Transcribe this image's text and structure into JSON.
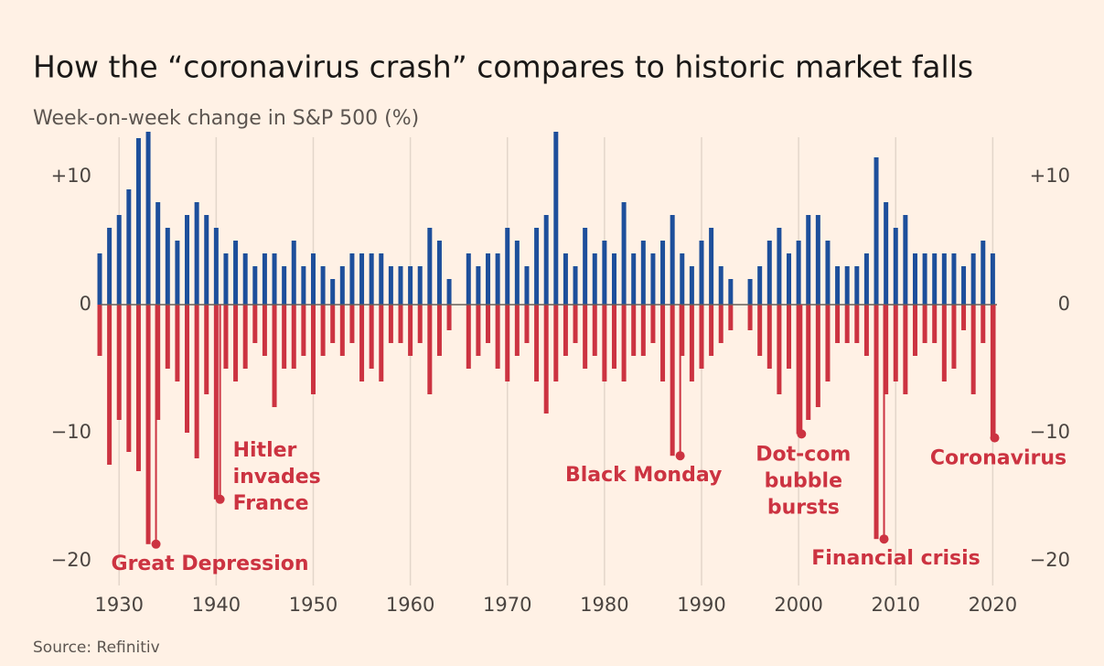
{
  "chart_data": {
    "type": "bar",
    "title": "How the “coronavirus crash” compares to historic market falls",
    "subtitle": "Week-on-week change in S&P 500 (%)",
    "source": "Source: Refinitiv",
    "x": [
      1928,
      1929,
      1930,
      1931,
      1932,
      1933,
      1934,
      1935,
      1936,
      1937,
      1938,
      1939,
      1940,
      1941,
      1942,
      1943,
      1944,
      1945,
      1946,
      1947,
      1948,
      1949,
      1950,
      1951,
      1952,
      1953,
      1954,
      1955,
      1956,
      1957,
      1958,
      1959,
      1960,
      1961,
      1962,
      1963,
      1964,
      1965,
      1966,
      1967,
      1968,
      1969,
      1970,
      1971,
      1972,
      1973,
      1974,
      1975,
      1976,
      1977,
      1978,
      1979,
      1980,
      1981,
      1982,
      1983,
      1984,
      1985,
      1986,
      1987,
      1988,
      1989,
      1990,
      1991,
      1992,
      1993,
      1994,
      1995,
      1996,
      1997,
      1998,
      1999,
      2000,
      2001,
      2002,
      2003,
      2004,
      2005,
      2006,
      2007,
      2008,
      2009,
      2010,
      2011,
      2012,
      2013,
      2014,
      2015,
      2016,
      2017,
      2018,
      2019,
      2020
    ],
    "series": [
      {
        "color": "#1d4f9b",
        "values": [
          4,
          6,
          7,
          9,
          13,
          13.5,
          8,
          6,
          5,
          7,
          8,
          7,
          6,
          4,
          5,
          4,
          3,
          4,
          4,
          3,
          5,
          3,
          4,
          3,
          2,
          3,
          4,
          4,
          4,
          4,
          3,
          3,
          3,
          3,
          6,
          5,
          2,
          null,
          4,
          3,
          4,
          4,
          6,
          5,
          3,
          6,
          7,
          13.5,
          4,
          3,
          6,
          4,
          5,
          4,
          8,
          4,
          5,
          4,
          5,
          7,
          4,
          3,
          5,
          6,
          3,
          2,
          null,
          2,
          3,
          5,
          6,
          4,
          5,
          7,
          7,
          5,
          3,
          3,
          3,
          4,
          11.5,
          8,
          6,
          7,
          4,
          4,
          4,
          4,
          4,
          3,
          4,
          5,
          4
        ]
      },
      {
        "color": "#cc3341",
        "values": [
          -4,
          -12.5,
          -9,
          -11.5,
          -13,
          -18.7,
          -9,
          -5,
          -6,
          -10,
          -12,
          -7,
          -15.2,
          -5,
          -6,
          -5,
          -3,
          -4,
          -8,
          -5,
          -5,
          -4,
          -7,
          -4,
          -3,
          -4,
          -3,
          -6,
          -5,
          -6,
          -3,
          -3,
          -4,
          -3,
          -7,
          -4,
          -2,
          null,
          -5,
          -4,
          -3,
          -5,
          -6,
          -4,
          -3,
          -6,
          -8.5,
          -6,
          -4,
          -3,
          -5,
          -4,
          -6,
          -5,
          -6,
          -4,
          -4,
          -3,
          -6,
          -11.8,
          -4,
          -6,
          -5,
          -4,
          -3,
          -2,
          null,
          -2,
          -4,
          -5,
          -7,
          -5,
          -10.1,
          -9,
          -8,
          -6,
          -3,
          -3,
          -3,
          -4,
          -18.3,
          -7,
          -6,
          -7,
          -4,
          -3,
          -3,
          -6,
          -5,
          -2,
          -7,
          -3,
          -10.4
        ]
      }
    ],
    "xlim": [
      1928,
      2021
    ],
    "xticks": [
      1930,
      1940,
      1950,
      1960,
      1970,
      1980,
      1990,
      2000,
      2010,
      2020
    ],
    "ylim": [
      -21,
      14
    ],
    "yticks": [
      {
        "value": 10,
        "label": "+10"
      },
      0,
      {
        "value": -10,
        "label": "−10"
      },
      {
        "value": -20,
        "label": "−20"
      }
    ],
    "annotation_color": "#cc3341",
    "annotations": [
      {
        "lines": [
          "Great Depression"
        ],
        "x": 1933.8,
        "y": -18.7
      },
      {
        "lines": [
          "Hitler",
          "invades",
          "France"
        ],
        "x": 1940.4,
        "y": -15.2
      },
      {
        "lines": [
          "Black Monday"
        ],
        "x": 1987.8,
        "y": -11.8
      },
      {
        "lines": [
          "Dot-com",
          "bubble",
          "bursts"
        ],
        "x": 2000.3,
        "y": -10.1
      },
      {
        "lines": [
          "Financial crisis"
        ],
        "x": 2008.8,
        "y": -18.3
      },
      {
        "lines": [
          "Coronavirus"
        ],
        "x": 2020.2,
        "y": -10.4
      }
    ]
  }
}
